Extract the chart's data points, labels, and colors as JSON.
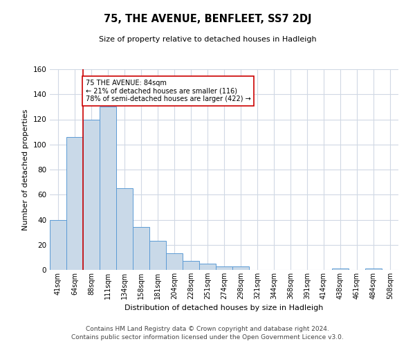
{
  "title": "75, THE AVENUE, BENFLEET, SS7 2DJ",
  "subtitle": "Size of property relative to detached houses in Hadleigh",
  "xlabel": "Distribution of detached houses by size in Hadleigh",
  "ylabel": "Number of detached properties",
  "bin_labels": [
    "41sqm",
    "64sqm",
    "88sqm",
    "111sqm",
    "134sqm",
    "158sqm",
    "181sqm",
    "204sqm",
    "228sqm",
    "251sqm",
    "274sqm",
    "298sqm",
    "321sqm",
    "344sqm",
    "368sqm",
    "391sqm",
    "414sqm",
    "438sqm",
    "461sqm",
    "484sqm",
    "508sqm"
  ],
  "bar_values": [
    40,
    106,
    120,
    130,
    65,
    34,
    23,
    13,
    7,
    5,
    3,
    3,
    0,
    0,
    0,
    0,
    0,
    1,
    0,
    1,
    0
  ],
  "bar_color": "#c9d9e8",
  "bar_edge_color": "#5b9bd5",
  "vline_x_index": 1.5,
  "vline_color": "#cc0000",
  "annotation_text": "75 THE AVENUE: 84sqm\n← 21% of detached houses are smaller (116)\n78% of semi-detached houses are larger (422) →",
  "annotation_box_edge": "#cc0000",
  "ylim": [
    0,
    160
  ],
  "yticks": [
    0,
    20,
    40,
    60,
    80,
    100,
    120,
    140,
    160
  ],
  "footer_line1": "Contains HM Land Registry data © Crown copyright and database right 2024.",
  "footer_line2": "Contains public sector information licensed under the Open Government Licence v3.0.",
  "background_color": "#ffffff",
  "grid_color": "#d0d8e4",
  "title_fontsize": 10.5,
  "subtitle_fontsize": 8,
  "tick_fontsize": 7,
  "ylabel_fontsize": 8,
  "xlabel_fontsize": 8,
  "footer_fontsize": 6.5
}
